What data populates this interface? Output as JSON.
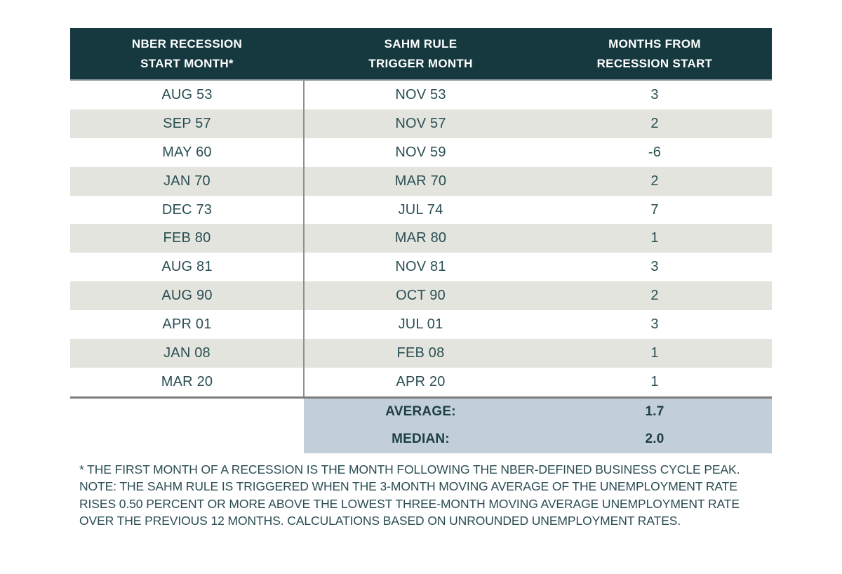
{
  "chart_data": {
    "type": "table",
    "title": "",
    "columns": [
      "NBER RECESSION START MONTH*",
      "SAHM RULE TRIGGER MONTH",
      "MONTHS FROM RECESSION START"
    ],
    "rows": [
      [
        "AUG 53",
        "NOV 53",
        3
      ],
      [
        "SEP 57",
        "NOV 57",
        2
      ],
      [
        "MAY 60",
        "NOV 59",
        -6
      ],
      [
        "JAN 70",
        "MAR 70",
        2
      ],
      [
        "DEC 73",
        "JUL 74",
        7
      ],
      [
        "FEB 80",
        "MAR 80",
        1
      ],
      [
        "AUG 81",
        "NOV 81",
        3
      ],
      [
        "AUG 90",
        "OCT 90",
        2
      ],
      [
        "APR 01",
        "JUL 01",
        3
      ],
      [
        "JAN 08",
        "FEB 08",
        1
      ],
      [
        "MAR 20",
        "APR 20",
        1
      ]
    ],
    "summary": {
      "average": 1.7,
      "median": 2.0
    }
  },
  "table": {
    "headers": [
      {
        "line1": "NBER RECESSION",
        "line2": "START MONTH*"
      },
      {
        "line1": "SAHM RULE",
        "line2": "TRIGGER MONTH"
      },
      {
        "line1": "MONTHS FROM",
        "line2": "RECESSION START"
      }
    ],
    "rows": [
      {
        "start": "AUG 53",
        "trigger": "NOV 53",
        "months": "3"
      },
      {
        "start": "SEP 57",
        "trigger": "NOV 57",
        "months": "2"
      },
      {
        "start": "MAY 60",
        "trigger": "NOV 59",
        "months": "-6"
      },
      {
        "start": "JAN 70",
        "trigger": "MAR 70",
        "months": "2"
      },
      {
        "start": "DEC 73",
        "trigger": "JUL 74",
        "months": "7"
      },
      {
        "start": "FEB 80",
        "trigger": "MAR 80",
        "months": "1"
      },
      {
        "start": "AUG 81",
        "trigger": "NOV 81",
        "months": "3"
      },
      {
        "start": "AUG 90",
        "trigger": "OCT 90",
        "months": "2"
      },
      {
        "start": "APR 01",
        "trigger": "JUL 01",
        "months": "3"
      },
      {
        "start": "JAN 08",
        "trigger": "FEB 08",
        "months": "1"
      },
      {
        "start": "MAR 20",
        "trigger": "APR 20",
        "months": "1"
      }
    ],
    "summary": [
      {
        "label": "AVERAGE:",
        "value": "1.7"
      },
      {
        "label": "MEDIAN:",
        "value": "2.0"
      }
    ]
  },
  "footnotes": {
    "asterisk_note": "* THE FIRST MONTH OF A RECESSION IS THE MONTH FOLLOWING THE NBER-DEFINED BUSINESS CYCLE PEAK.",
    "sahm_note": "NOTE: THE SAHM RULE IS TRIGGERED WHEN THE 3-MONTH MOVING AVERAGE OF THE UNEMPLOYMENT RATE RISES 0.50 PERCENT OR MORE ABOVE THE LOWEST THREE-MONTH MOVING AVERAGE UNEMPLOYMENT RATE OVER THE PREVIOUS 12 MONTHS. CALCULATIONS BASED ON UNROUNDED UNEMPLOYMENT RATES."
  },
  "colors": {
    "header_bg": "#16393f",
    "header_text": "#ffffff",
    "row_alt_bg": "#e3e4de",
    "data_text": "#2b4f53",
    "summary_bg": "#c2cfd8",
    "summary_text": "#1c3e44",
    "column_divider": "#8e8e8e",
    "table_bottom_line": "#7d7d7d"
  }
}
